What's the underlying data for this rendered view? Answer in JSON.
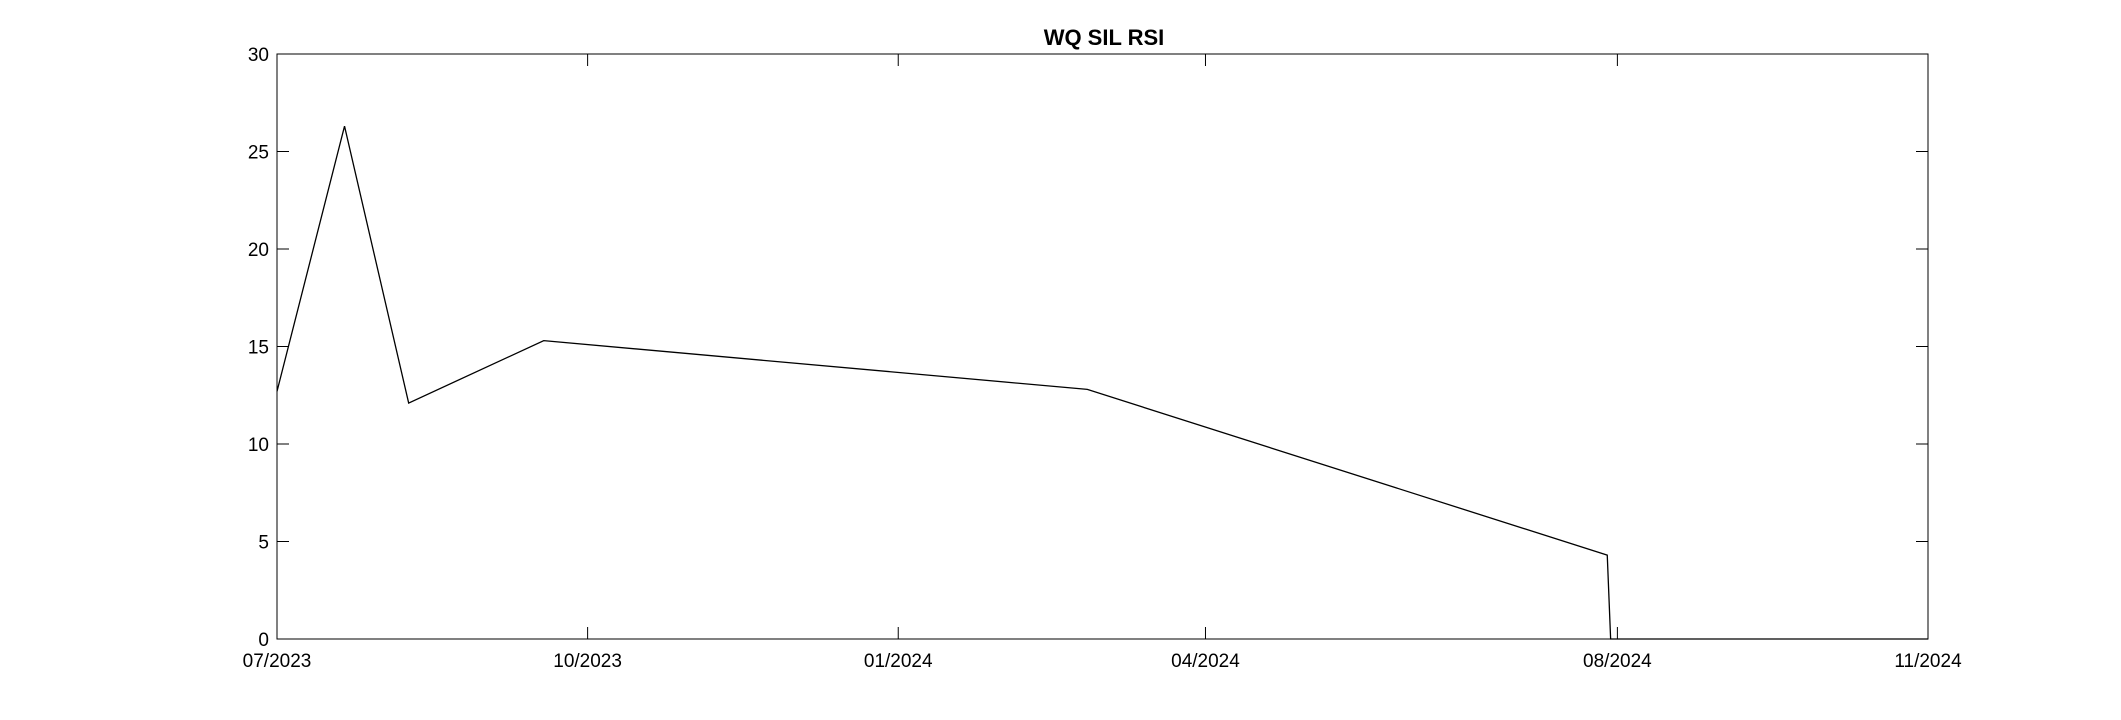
{
  "chart_data": {
    "type": "line",
    "title": "WQ SIL RSI",
    "xlabel": "",
    "ylabel": "",
    "x_axis_type": "date",
    "xlim": [
      "2023-07-01",
      "2024-11-01"
    ],
    "ylim": [
      0,
      30
    ],
    "x_ticks": [
      {
        "date": "2023-07-01",
        "label": "07/2023"
      },
      {
        "date": "2023-10-01",
        "label": "10/2023"
      },
      {
        "date": "2024-01-01",
        "label": "01/2024"
      },
      {
        "date": "2024-04-01",
        "label": "04/2024"
      },
      {
        "date": "2024-08-01",
        "label": "08/2024"
      },
      {
        "date": "2024-11-01",
        "label": "11/2024"
      }
    ],
    "y_ticks": [
      0,
      5,
      10,
      15,
      20,
      25,
      30
    ],
    "grid": false,
    "line_color": "#000000",
    "series": [
      {
        "points": [
          {
            "x": "2023-07-01",
            "y": 12.7
          },
          {
            "x": "2023-07-21",
            "y": 26.3
          },
          {
            "x": "2023-08-09",
            "y": 12.1
          },
          {
            "x": "2023-09-18",
            "y": 15.3
          },
          {
            "x": "2024-02-26",
            "y": 12.8
          },
          {
            "x": "2024-07-29",
            "y": 4.3
          },
          {
            "x": "2024-07-30",
            "y": 0.0
          },
          {
            "x": "2024-11-01",
            "y": 0.0
          }
        ]
      }
    ]
  }
}
